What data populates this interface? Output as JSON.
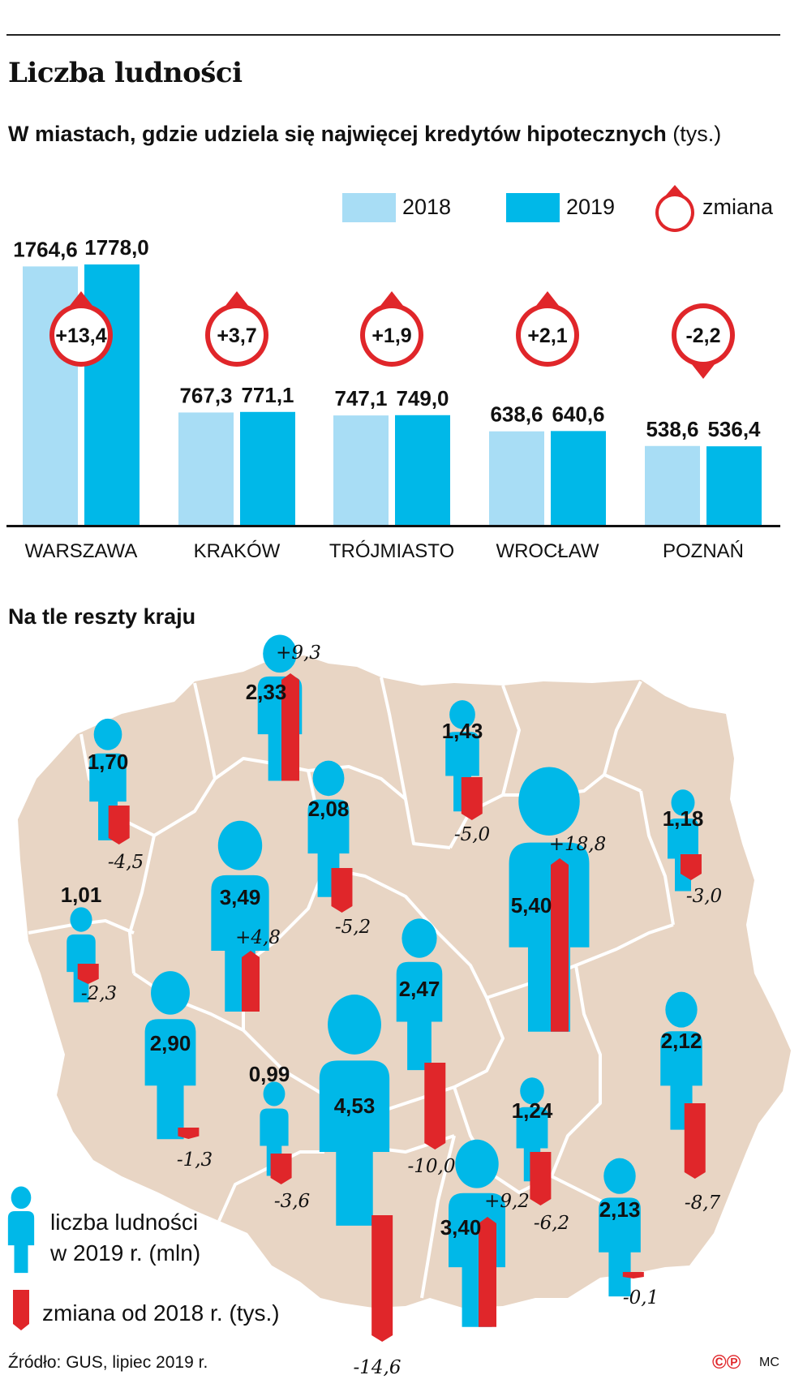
{
  "title": "Liczba ludności",
  "subtitle": "W miastach, gdzie udziela się najwięcej kredytów hipotecznych",
  "subtitle_unit": "(tys.)",
  "legend": {
    "y2018": "2018",
    "y2019": "2019",
    "change": "zmiana"
  },
  "colors": {
    "c2018": "#a8ddf5",
    "c2019": "#00b8e8",
    "red": "#e0262a",
    "map": "#e8d5c4",
    "border": "#ffffff"
  },
  "chart_data": [
    {
      "type": "bar",
      "title": "W miastach, gdzie udziela się najwięcej kredytów hipotecznych (tys.)",
      "categories": [
        "WARSZAWA",
        "KRAKÓW",
        "TRÓJMIASTO",
        "WROCŁAW",
        "POZNAŃ"
      ],
      "series": [
        {
          "name": "2018",
          "values": [
            1764.6,
            767.3,
            747.1,
            638.6,
            538.6
          ],
          "labels": [
            "1764,6",
            "767,3",
            "747,1",
            "638,6",
            "538,6"
          ]
        },
        {
          "name": "2019",
          "values": [
            1778.0,
            771.1,
            749.0,
            640.6,
            536.4
          ],
          "labels": [
            "1778,0",
            "771,1",
            "749,0",
            "640,6",
            "536,4"
          ]
        }
      ],
      "change": {
        "name": "zmiana",
        "values": [
          13.4,
          3.7,
          1.9,
          2.1,
          -2.2
        ],
        "labels": [
          "+13,4",
          "+3,7",
          "+1,9",
          "+2,1",
          "-2,2"
        ]
      }
    },
    {
      "type": "map",
      "title": "Na tle reszty kraju",
      "legend": {
        "population": "liczba ludności w 2019 r. (mln)",
        "change": "zmiana od 2018 r. (tys.)"
      },
      "regions": [
        {
          "population": "2,33",
          "pop_value": 2.33,
          "change": "+9,3",
          "change_value": 9.3
        },
        {
          "population": "1,70",
          "pop_value": 1.7,
          "change": "-4,5",
          "change_value": -4.5
        },
        {
          "population": "2,08",
          "pop_value": 2.08,
          "change": "-5,2",
          "change_value": -5.2
        },
        {
          "population": "1,43",
          "pop_value": 1.43,
          "change": "-5,0",
          "change_value": -5.0
        },
        {
          "population": "5,40",
          "pop_value": 5.4,
          "change": "+18,8",
          "change_value": 18.8
        },
        {
          "population": "1,18",
          "pop_value": 1.18,
          "change": "-3,0",
          "change_value": -3.0
        },
        {
          "population": "1,01",
          "pop_value": 1.01,
          "change": "-2,3",
          "change_value": -2.3
        },
        {
          "population": "3,49",
          "pop_value": 3.49,
          "change": "+4,8",
          "change_value": 4.8
        },
        {
          "population": "2,47",
          "pop_value": 2.47,
          "change": "-10,0",
          "change_value": -10.0
        },
        {
          "population": "2,90",
          "pop_value": 2.9,
          "change": "-1,3",
          "change_value": -1.3
        },
        {
          "population": "0,99",
          "pop_value": 0.99,
          "change": "-3,6",
          "change_value": -3.6
        },
        {
          "population": "4,53",
          "pop_value": 4.53,
          "change": "-14,6",
          "change_value": -14.6
        },
        {
          "population": "1,24",
          "pop_value": 1.24,
          "change": "-6,2",
          "change_value": -6.2
        },
        {
          "population": "2,12",
          "pop_value": 2.12,
          "change": "-8,7",
          "change_value": -8.7
        },
        {
          "population": "3,40",
          "pop_value": 3.4,
          "change": "+9,2",
          "change_value": 9.2
        },
        {
          "population": "2,13",
          "pop_value": 2.13,
          "change": "-0,1",
          "change_value": -0.1
        }
      ]
    }
  ],
  "section2_title": "Na tle reszty kraju",
  "map_legend": {
    "population_l1": "liczba ludności",
    "population_l2": "w 2019 r. (mln)",
    "change": "zmiana od 2018 r. (tys.)"
  },
  "source": "Źródło: GUS, lipiec 2019 r.",
  "credit_initials": "MC"
}
